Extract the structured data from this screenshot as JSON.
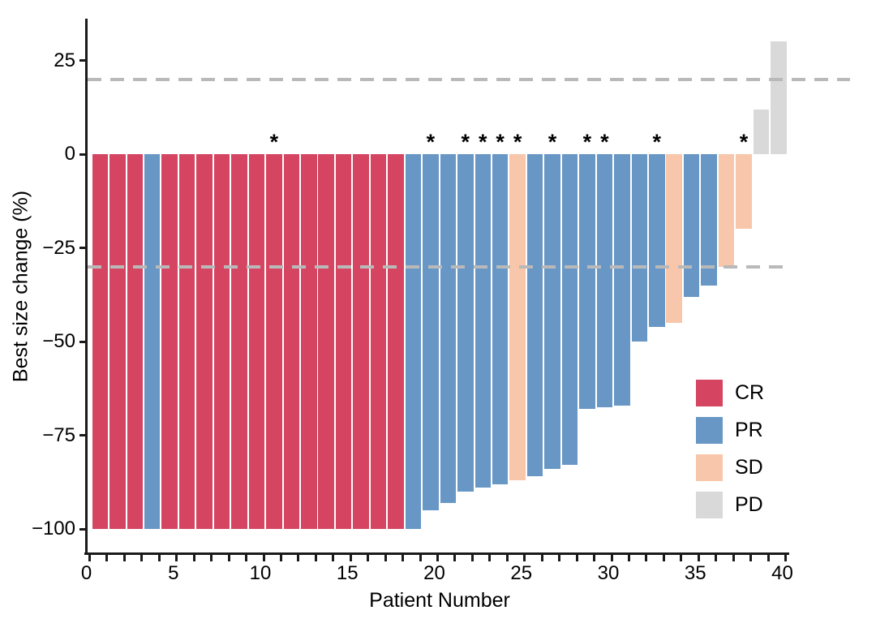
{
  "chart_data": {
    "type": "bar",
    "title": "",
    "xlabel": "Patient Number",
    "ylabel": "Best size change (%)",
    "ylim": [
      -107,
      36
    ],
    "xlim": [
      0,
      40
    ],
    "grid": false,
    "legend_position": "right-middle",
    "yticks": [
      25,
      0,
      -25,
      -50,
      -75,
      -100
    ],
    "ytick_labels": [
      "25",
      "0",
      "−25",
      "−50",
      "−75",
      "−100"
    ],
    "xticks": [
      0,
      5,
      10,
      15,
      20,
      25,
      30,
      35,
      40
    ],
    "xtick_labels": [
      "0",
      "5",
      "10",
      "15",
      "20",
      "25",
      "30",
      "35",
      "40"
    ],
    "minor_xtick_step": 1,
    "reference_lines": [
      {
        "y": 20,
        "style": "dashed",
        "color": "#b9b9b9"
      },
      {
        "y": -30,
        "style": "dashed",
        "color": "#b9b9b9"
      }
    ],
    "legend": [
      {
        "label": "CR",
        "color": "#d54561"
      },
      {
        "label": "PR",
        "color": "#6897c6"
      },
      {
        "label": "SD",
        "color": "#f8c7ab"
      },
      {
        "label": "PD",
        "color": "#d9d9d9"
      }
    ],
    "series_note": "waterfall of best size change per patient",
    "patients": [
      {
        "n": 1,
        "response": "CR",
        "value": -100,
        "asterisk": false
      },
      {
        "n": 2,
        "response": "CR",
        "value": -100,
        "asterisk": false
      },
      {
        "n": 3,
        "response": "CR",
        "value": -100,
        "asterisk": false
      },
      {
        "n": 4,
        "response": "PR",
        "value": -100,
        "asterisk": false
      },
      {
        "n": 5,
        "response": "CR",
        "value": -100,
        "asterisk": false
      },
      {
        "n": 6,
        "response": "CR",
        "value": -100,
        "asterisk": false
      },
      {
        "n": 7,
        "response": "CR",
        "value": -100,
        "asterisk": false
      },
      {
        "n": 8,
        "response": "CR",
        "value": -100,
        "asterisk": false
      },
      {
        "n": 9,
        "response": "CR",
        "value": -100,
        "asterisk": false
      },
      {
        "n": 10,
        "response": "CR",
        "value": -100,
        "asterisk": false
      },
      {
        "n": 11,
        "response": "CR",
        "value": -100,
        "asterisk": true
      },
      {
        "n": 12,
        "response": "CR",
        "value": -100,
        "asterisk": false
      },
      {
        "n": 13,
        "response": "CR",
        "value": -100,
        "asterisk": false
      },
      {
        "n": 14,
        "response": "CR",
        "value": -100,
        "asterisk": false
      },
      {
        "n": 15,
        "response": "CR",
        "value": -100,
        "asterisk": false
      },
      {
        "n": 16,
        "response": "CR",
        "value": -100,
        "asterisk": false
      },
      {
        "n": 17,
        "response": "CR",
        "value": -100,
        "asterisk": false
      },
      {
        "n": 18,
        "response": "CR",
        "value": -100,
        "asterisk": false
      },
      {
        "n": 19,
        "response": "PR",
        "value": -100,
        "asterisk": false
      },
      {
        "n": 20,
        "response": "PR",
        "value": -95,
        "asterisk": true
      },
      {
        "n": 21,
        "response": "PR",
        "value": -93,
        "asterisk": false
      },
      {
        "n": 22,
        "response": "PR",
        "value": -90,
        "asterisk": true
      },
      {
        "n": 23,
        "response": "PR",
        "value": -89,
        "asterisk": true
      },
      {
        "n": 24,
        "response": "PR",
        "value": -88,
        "asterisk": true
      },
      {
        "n": 25,
        "response": "SD",
        "value": -87,
        "asterisk": true
      },
      {
        "n": 26,
        "response": "PR",
        "value": -86,
        "asterisk": false
      },
      {
        "n": 27,
        "response": "PR",
        "value": -84,
        "asterisk": true
      },
      {
        "n": 28,
        "response": "PR",
        "value": -83,
        "asterisk": false
      },
      {
        "n": 29,
        "response": "PR",
        "value": -68,
        "asterisk": true
      },
      {
        "n": 30,
        "response": "PR",
        "value": -67.5,
        "asterisk": true
      },
      {
        "n": 31,
        "response": "PR",
        "value": -67,
        "asterisk": false
      },
      {
        "n": 32,
        "response": "PR",
        "value": -50,
        "asterisk": false
      },
      {
        "n": 33,
        "response": "PR",
        "value": -46,
        "asterisk": true
      },
      {
        "n": 34,
        "response": "SD",
        "value": -45,
        "asterisk": false
      },
      {
        "n": 35,
        "response": "PR",
        "value": -38,
        "asterisk": false
      },
      {
        "n": 36,
        "response": "PR",
        "value": -35,
        "asterisk": false
      },
      {
        "n": 37,
        "response": "SD",
        "value": -30,
        "asterisk": false
      },
      {
        "n": 38,
        "response": "SD",
        "value": -20,
        "asterisk": true
      },
      {
        "n": 39,
        "response": "PD",
        "value": 12,
        "asterisk": false
      },
      {
        "n": 40,
        "response": "PD",
        "value": 30,
        "asterisk": false
      }
    ]
  },
  "colors": {
    "CR": "#d54561",
    "PR": "#6897c6",
    "SD": "#f8c7ab",
    "PD": "#d9d9d9",
    "axis": "#1a1a1a",
    "dash": "#b9b9b9",
    "background": "#ffffff"
  }
}
